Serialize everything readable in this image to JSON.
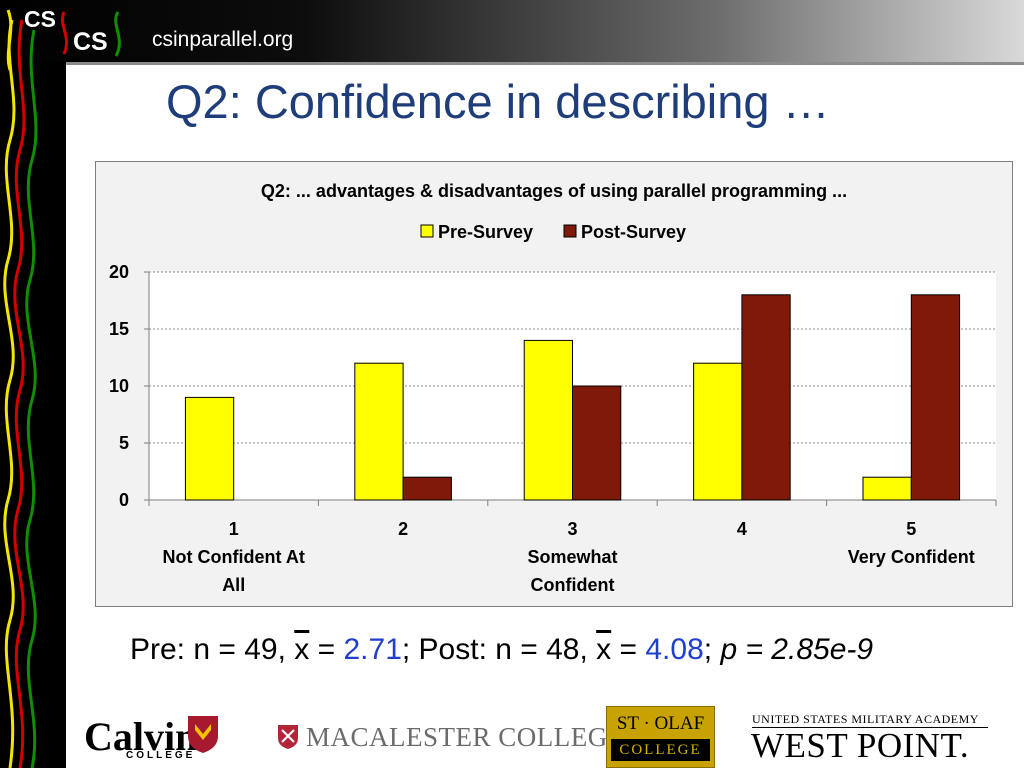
{
  "header": {
    "site": "csinparallel.org",
    "logo_line1": "CS",
    "logo_line2": "CS"
  },
  "slide": {
    "title": "Q2: Confidence in describing …"
  },
  "chart_data": {
    "type": "bar",
    "title": "Q2: ... advantages & disadvantages of using parallel programming ...",
    "categories": [
      {
        "line1": "1",
        "line2": "Not Confident At",
        "line3": "All"
      },
      {
        "line1": "2",
        "line2": "",
        "line3": ""
      },
      {
        "line1": "3",
        "line2": "Somewhat",
        "line3": "Confident"
      },
      {
        "line1": "4",
        "line2": "",
        "line3": ""
      },
      {
        "line1": "5",
        "line2": "Very Confident",
        "line3": ""
      }
    ],
    "series": [
      {
        "name": "Pre-Survey",
        "color": "#ffff00",
        "values": [
          9,
          12,
          14,
          12,
          2
        ]
      },
      {
        "name": "Post-Survey",
        "color": "#7f1a0a",
        "values": [
          0,
          2,
          10,
          18,
          18
        ]
      }
    ],
    "ylim": [
      0,
      20
    ],
    "yticks": [
      0,
      5,
      10,
      15,
      20
    ],
    "legend": "top-center",
    "grid": true
  },
  "stats": {
    "pre_prefix": "Pre: n = 49, ",
    "xbar1": "x",
    "eq1": " = ",
    "pre_mean": "2.71",
    "post_prefix": "; Post: n = 48, ",
    "xbar2": "x",
    "eq2": " = ",
    "post_mean": "4.08",
    "sep": "; ",
    "p_value": "p = 2.85e-9"
  },
  "footer": {
    "calvin": "Calvin",
    "calvin_sub": "COLLEGE",
    "macalester": "MACALESTER COLLEGE",
    "stolaf_top": "ST · OLAF",
    "stolaf_bottom": "COLLEGE",
    "westpoint_top": "UNITED STATES MILITARY ACADEMY",
    "westpoint_main": "WEST POINT."
  }
}
